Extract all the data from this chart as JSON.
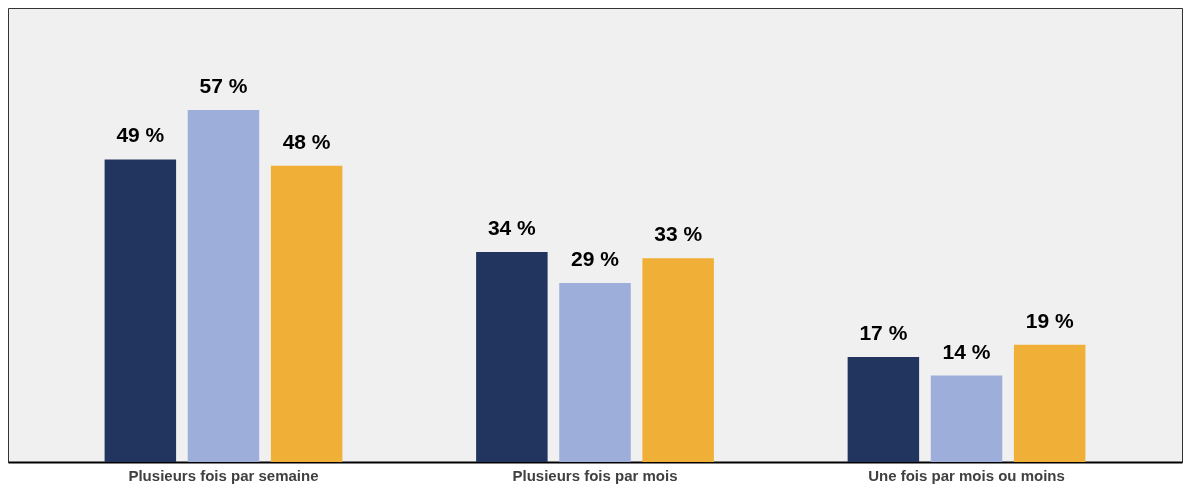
{
  "chart_data": {
    "type": "bar",
    "categories": [
      "Plusieurs fois par semaine",
      "Plusieurs fois par mois",
      "Une fois par mois ou moins"
    ],
    "series": [
      {
        "color": "#22355e",
        "values": [
          49,
          34,
          17
        ],
        "value_labels": [
          "49 %",
          "34 %",
          "17 %"
        ]
      },
      {
        "color": "#9daedb",
        "values": [
          57,
          29,
          14
        ],
        "value_labels": [
          "57 %",
          "29 %",
          "14 %"
        ]
      },
      {
        "color": "#f0af36",
        "values": [
          48,
          33,
          19
        ],
        "value_labels": [
          "48 %",
          "33 %",
          "19 %"
        ]
      }
    ]
  }
}
